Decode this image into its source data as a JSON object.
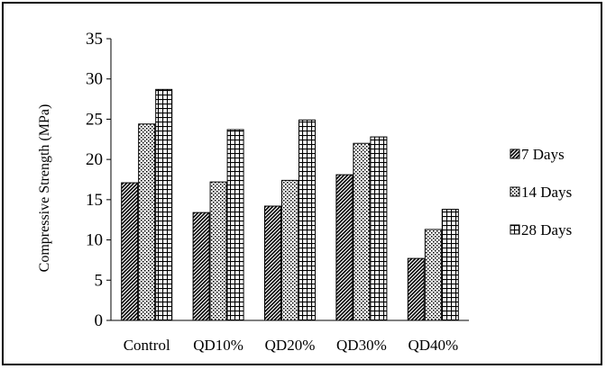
{
  "chart_data": {
    "type": "bar",
    "title": "",
    "xlabel": "",
    "ylabel": "Compressive Strength (MPa)",
    "ylim": [
      0,
      35
    ],
    "yticks": [
      0,
      5,
      10,
      15,
      20,
      25,
      30,
      35
    ],
    "grid": false,
    "legend_position": "right",
    "categories": [
      "Control",
      "QD10%",
      "QD20%",
      "QD30%",
      "QD40%"
    ],
    "series": [
      {
        "name": "7 Days",
        "pattern": "diagonal-hatch",
        "values": [
          17.1,
          13.4,
          14.2,
          18.1,
          7.7
        ]
      },
      {
        "name": "14 Days",
        "pattern": "dotted",
        "values": [
          24.4,
          17.2,
          17.4,
          22.0,
          11.3
        ]
      },
      {
        "name": "28 Days",
        "pattern": "grid",
        "values": [
          28.7,
          23.7,
          24.9,
          22.8,
          13.8
        ]
      }
    ],
    "colors": {
      "ink": "#000000",
      "background": "#ffffff"
    }
  }
}
